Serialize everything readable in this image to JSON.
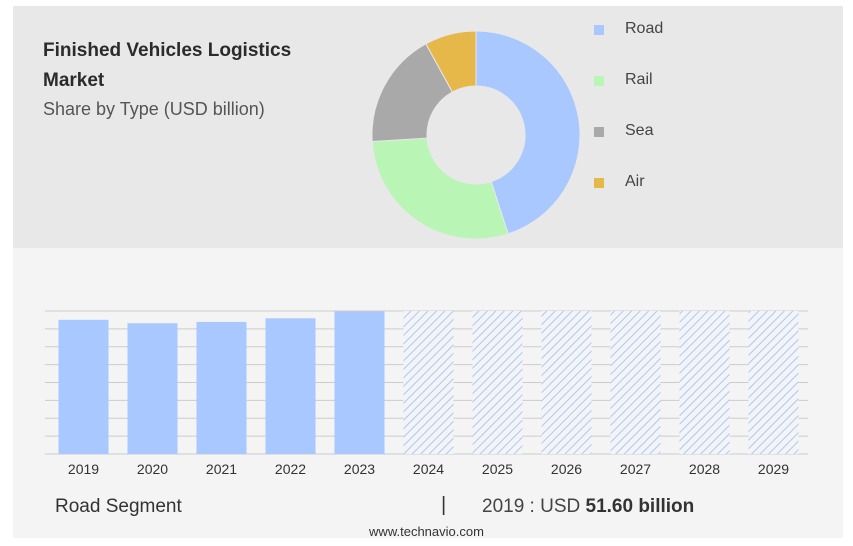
{
  "header": {
    "title": "Finished Vehicles Logistics Market",
    "subtitle": "Share by Type (USD billion)"
  },
  "chart_data": [
    {
      "type": "pie",
      "variant": "donut",
      "categories": [
        "Road",
        "Rail",
        "Sea",
        "Air"
      ],
      "values": [
        45,
        29,
        18,
        8
      ],
      "colors": [
        "#a8c8ff",
        "#b9f5b4",
        "#a9a9a9",
        "#e6b84a"
      ],
      "legend_position": "right"
    },
    {
      "type": "bar",
      "categories": [
        "2019",
        "2020",
        "2021",
        "2022",
        "2023",
        "2024",
        "2025",
        "2026",
        "2027",
        "2028",
        "2029"
      ],
      "values": [
        51.6,
        50.3,
        50.8,
        52.2,
        54.8,
        null,
        null,
        null,
        null,
        null,
        null
      ],
      "forecast_categories": [
        "2024",
        "2025",
        "2026",
        "2027",
        "2028",
        "2029"
      ],
      "ylim": [
        0,
        55
      ],
      "grid": true,
      "bar_color": "#a8c8ff",
      "forecast_style": "hatched"
    }
  ],
  "footer": {
    "segment_label": "Road Segment",
    "separator": "|",
    "value_prefix": "2019 : USD ",
    "value_bold": "51.60 billion",
    "source": "www.technavio.com"
  }
}
